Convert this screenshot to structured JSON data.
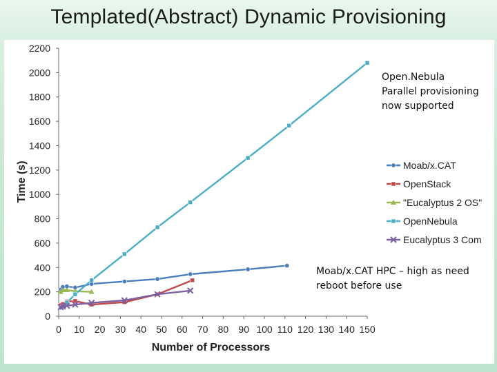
{
  "slide": {
    "title": "Templated(Abstract) Dynamic Provisioning"
  },
  "chart_data": {
    "type": "line",
    "title": "",
    "xlabel": "Number of Processors",
    "ylabel": "Time (s)",
    "xlim": [
      0,
      150
    ],
    "ylim": [
      0,
      2200
    ],
    "xticks": [
      0,
      10,
      20,
      30,
      40,
      50,
      60,
      70,
      80,
      90,
      100,
      110,
      120,
      130,
      140,
      150
    ],
    "yticks": [
      0,
      200,
      400,
      600,
      800,
      1000,
      1200,
      1400,
      1600,
      1800,
      2000,
      2200
    ],
    "grid": false,
    "legend_position": "right",
    "series": [
      {
        "name": "Moab/x.CAT",
        "color": "#4a7ebb",
        "marker": "circle",
        "x": [
          1,
          2,
          4,
          8,
          16,
          32,
          48,
          64,
          92,
          111
        ],
        "y": [
          220,
          240,
          245,
          235,
          265,
          285,
          305,
          345,
          385,
          415
        ]
      },
      {
        "name": "OpenStack",
        "color": "#be4b48",
        "marker": "square",
        "x": [
          1,
          2,
          4,
          8,
          16,
          32,
          48,
          65
        ],
        "y": [
          90,
          100,
          120,
          125,
          95,
          115,
          180,
          295
        ]
      },
      {
        "name": "\"Eucalyptus 2 OS\"",
        "color": "#98b954",
        "marker": "triangle",
        "x": [
          1,
          2,
          4,
          8,
          16
        ],
        "y": [
          200,
          215,
          215,
          205,
          200
        ]
      },
      {
        "name": "OpenNebula",
        "color": "#4bacc6",
        "marker": "square",
        "x": [
          1,
          2,
          4,
          8,
          16,
          32,
          48,
          64,
          92,
          112,
          150
        ],
        "y": [
          70,
          80,
          110,
          180,
          295,
          510,
          730,
          935,
          1300,
          1565,
          2080
        ]
      },
      {
        "name": "Eucalyptus 3 Com",
        "color": "#7d60a0",
        "marker": "x",
        "x": [
          1,
          2,
          4,
          8,
          16,
          32,
          48,
          64
        ],
        "y": [
          75,
          80,
          85,
          95,
          110,
          130,
          180,
          210
        ]
      }
    ],
    "annotations": [
      {
        "text_lines": [
          "Open.Nebula",
          "Parallel  provisioning",
          "now supported"
        ]
      },
      {
        "text_lines": [
          "Moab/x.CAT HPC – high as need",
          "reboot before use"
        ]
      }
    ]
  }
}
